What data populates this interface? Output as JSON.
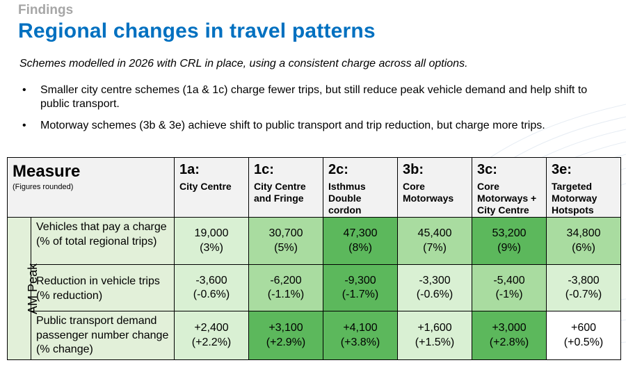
{
  "header": {
    "section_label": "Findings",
    "title": "Regional changes in travel patterns",
    "subtitle": "Schemes modelled in 2026 with CRL in place, using a consistent charge across all options."
  },
  "bullets": [
    "Smaller city centre schemes (1a & 1c) charge fewer trips, but still reduce peak vehicle demand and help shift to public transport.",
    "Motorway schemes (3b & 3e) achieve shift to public transport and trip reduction, but charge more trips."
  ],
  "bullet_glyph": "•",
  "table": {
    "measure_header": "Measure",
    "measure_note": "(Figures rounded)",
    "group_label": "AM Peak",
    "options": [
      {
        "code": "1a:",
        "name": "City Centre"
      },
      {
        "code": "1c:",
        "name": "City Centre and Fringe"
      },
      {
        "code": "2c:",
        "name": "Isthmus Double cordon"
      },
      {
        "code": "3b:",
        "name": "Core Motorways"
      },
      {
        "code": "3c:",
        "name": "Core Motorways + City Centre"
      },
      {
        "code": "3e:",
        "name": "Targeted Motorway Hotspots"
      }
    ],
    "rows": [
      {
        "measure": "Vehicles that pay a charge (% of total regional trips)",
        "cells": [
          {
            "value": "19,000",
            "sub": "(3%)",
            "shade": "#d9f0d3"
          },
          {
            "value": "30,700",
            "sub": "(5%)",
            "shade": "#a9dca0"
          },
          {
            "value": "47,300",
            "sub": "(8%)",
            "shade": "#5cb85c"
          },
          {
            "value": "45,400",
            "sub": "(7%)",
            "shade": "#a9dca0"
          },
          {
            "value": "53,200",
            "sub": "(9%)",
            "shade": "#5cb85c"
          },
          {
            "value": "34,800",
            "sub": "(6%)",
            "shade": "#a9dca0"
          }
        ]
      },
      {
        "measure": "Reduction in vehicle trips (% reduction)",
        "cells": [
          {
            "value": "-3,600",
            "sub": "(-0.6%)",
            "shade": "#d9f0d3"
          },
          {
            "value": "-6,200",
            "sub": "(-1.1%)",
            "shade": "#a9dca0"
          },
          {
            "value": "-9,300",
            "sub": "(-1.7%)",
            "shade": "#5cb85c"
          },
          {
            "value": "-3,300",
            "sub": "(-0.6%)",
            "shade": "#d9f0d3"
          },
          {
            "value": "-5,400",
            "sub": "(-1%)",
            "shade": "#a9dca0"
          },
          {
            "value": "-3,800",
            "sub": "(-0.7%)",
            "shade": "#d9f0d3"
          }
        ]
      },
      {
        "measure": "Public transport demand passenger number change (% change)",
        "cells": [
          {
            "value": "+2,400",
            "sub": "(+2.2%)",
            "shade": "#d9f0d3"
          },
          {
            "value": "+3,100",
            "sub": "(+2.9%)",
            "shade": "#5cb85c"
          },
          {
            "value": "+4,100",
            "sub": "(+3.8%)",
            "shade": "#5cb85c"
          },
          {
            "value": "+1,600",
            "sub": "(+1.5%)",
            "shade": "#d9f0d3"
          },
          {
            "value": "+3,000",
            "sub": "(+2.8%)",
            "shade": "#5cb85c"
          },
          {
            "value": "+600",
            "sub": "(+0.5%)",
            "shade": "#ffffff"
          }
        ]
      }
    ]
  },
  "colors": {
    "title_blue": "#0070c0",
    "section_grey": "#a6a6a6",
    "header_fill": "#f2f2f2",
    "measure_fill": "#e2f0d9"
  }
}
